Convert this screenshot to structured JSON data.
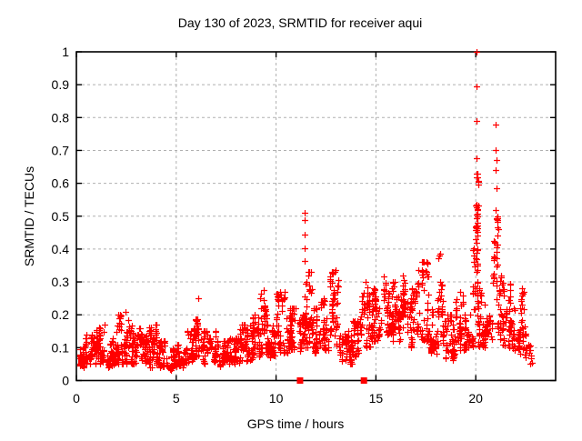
{
  "chart_data": {
    "type": "scatter",
    "title": "Day 130 of 2023, SRMTID for receiver aqui",
    "xlabel": "GPS time / hours",
    "ylabel": "SRMTID / TECUs",
    "xlim": [
      0,
      24
    ],
    "ylim": [
      0,
      1
    ],
    "xticks": [
      0,
      5,
      10,
      15,
      20
    ],
    "yticks": [
      0,
      0.1,
      0.2,
      0.3,
      0.4,
      0.5,
      0.6,
      0.7,
      0.8,
      0.9,
      1
    ],
    "grid": true,
    "legend": "none",
    "marker_color": "#ff0000",
    "grid_color": "#b0b0b0",
    "seed": 20230130,
    "series": [
      {
        "name": "srmtid",
        "marker": "plus",
        "band_envelope": [
          [
            0.03,
            0.5,
            0.04,
            0.13,
            55
          ],
          [
            0.5,
            1.0,
            0.05,
            0.14,
            55
          ],
          [
            1.0,
            1.5,
            0.05,
            0.17,
            55
          ],
          [
            1.5,
            2.0,
            0.04,
            0.13,
            55
          ],
          [
            2.0,
            2.5,
            0.05,
            0.2,
            55
          ],
          [
            2.5,
            3.0,
            0.05,
            0.19,
            55
          ],
          [
            3.0,
            3.5,
            0.05,
            0.16,
            55
          ],
          [
            3.5,
            4.0,
            0.04,
            0.17,
            55
          ],
          [
            4.0,
            4.5,
            0.04,
            0.12,
            50
          ],
          [
            4.5,
            5.0,
            0.03,
            0.1,
            50
          ],
          [
            5.0,
            5.5,
            0.04,
            0.11,
            50
          ],
          [
            5.5,
            5.9,
            0.05,
            0.15,
            40
          ],
          [
            5.9,
            6.3,
            0.07,
            0.25,
            45
          ],
          [
            6.3,
            7.0,
            0.05,
            0.15,
            70
          ],
          [
            7.0,
            7.6,
            0.04,
            0.12,
            60
          ],
          [
            7.6,
            8.2,
            0.05,
            0.13,
            60
          ],
          [
            8.2,
            8.8,
            0.06,
            0.17,
            60
          ],
          [
            8.8,
            9.2,
            0.07,
            0.2,
            42
          ],
          [
            9.2,
            9.6,
            0.08,
            0.27,
            42
          ],
          [
            9.6,
            10.0,
            0.07,
            0.18,
            42
          ],
          [
            10.0,
            10.6,
            0.08,
            0.27,
            62
          ],
          [
            10.6,
            11.1,
            0.09,
            0.22,
            52
          ],
          [
            11.1,
            11.35,
            0.08,
            0.2,
            26
          ],
          [
            11.35,
            11.55,
            0.1,
            0.34,
            28
          ],
          [
            11.55,
            11.85,
            0.1,
            0.33,
            34
          ],
          [
            11.85,
            12.25,
            0.08,
            0.22,
            42
          ],
          [
            12.25,
            12.65,
            0.09,
            0.25,
            42
          ],
          [
            12.65,
            13.15,
            0.1,
            0.33,
            52
          ],
          [
            13.15,
            13.85,
            0.05,
            0.16,
            72
          ],
          [
            13.85,
            14.2,
            0.07,
            0.18,
            36
          ],
          [
            14.2,
            14.85,
            0.1,
            0.3,
            66
          ],
          [
            14.85,
            15.25,
            0.12,
            0.28,
            42
          ],
          [
            15.25,
            15.85,
            0.14,
            0.33,
            62
          ],
          [
            15.85,
            16.25,
            0.12,
            0.3,
            42
          ],
          [
            16.25,
            16.65,
            0.14,
            0.32,
            42
          ],
          [
            16.65,
            17.05,
            0.1,
            0.28,
            42
          ],
          [
            17.05,
            17.65,
            0.12,
            0.36,
            60
          ],
          [
            17.65,
            18.05,
            0.08,
            0.22,
            42
          ],
          [
            18.05,
            18.45,
            0.1,
            0.38,
            42
          ],
          [
            18.45,
            19.0,
            0.06,
            0.2,
            56
          ],
          [
            19.0,
            19.4,
            0.08,
            0.27,
            42
          ],
          [
            19.4,
            19.85,
            0.09,
            0.2,
            46
          ],
          [
            19.85,
            20.1,
            0.12,
            0.55,
            30
          ],
          [
            19.98,
            20.2,
            0.45,
            0.63,
            26,
            0.7
          ],
          [
            20.1,
            20.35,
            0.1,
            0.3,
            26
          ],
          [
            20.35,
            20.85,
            0.1,
            0.24,
            50
          ],
          [
            20.85,
            21.1,
            0.15,
            0.5,
            30,
            0.9
          ],
          [
            21.1,
            21.35,
            0.12,
            0.35,
            28
          ],
          [
            21.35,
            21.8,
            0.1,
            0.3,
            48
          ],
          [
            21.8,
            22.2,
            0.09,
            0.22,
            40
          ],
          [
            22.2,
            22.45,
            0.08,
            0.28,
            24
          ],
          [
            22.45,
            22.8,
            0.05,
            0.17,
            22
          ]
        ],
        "outliers": [
          [
            2.45,
            0.21
          ],
          [
            6.1,
            0.25
          ],
          [
            9.4,
            0.275
          ],
          [
            11.44,
            0.365
          ],
          [
            11.44,
            0.402
          ],
          [
            11.44,
            0.445
          ],
          [
            11.44,
            0.487
          ],
          [
            11.44,
            0.51
          ],
          [
            11.75,
            0.33
          ],
          [
            13.0,
            0.335
          ],
          [
            14.5,
            0.3
          ],
          [
            17.4,
            0.36
          ],
          [
            18.2,
            0.385
          ],
          [
            19.2,
            0.27
          ],
          [
            20.05,
            1.0
          ],
          [
            20.03,
            0.895
          ],
          [
            20.05,
            0.79
          ],
          [
            20.05,
            0.675
          ],
          [
            20.08,
            0.52
          ],
          [
            20.08,
            0.5
          ],
          [
            20.06,
            0.47
          ],
          [
            20.08,
            0.44
          ],
          [
            20.06,
            0.42
          ],
          [
            20.08,
            0.4
          ],
          [
            20.06,
            0.37
          ],
          [
            20.08,
            0.35
          ],
          [
            20.06,
            0.33
          ],
          [
            20.08,
            0.3
          ],
          [
            20.06,
            0.28
          ],
          [
            21.0,
            0.78
          ],
          [
            21.0,
            0.7
          ],
          [
            21.02,
            0.67
          ],
          [
            21.0,
            0.64
          ],
          [
            21.02,
            0.585
          ],
          [
            21.0,
            0.52
          ],
          [
            21.02,
            0.49
          ],
          [
            21.1,
            0.44
          ],
          [
            21.12,
            0.46
          ],
          [
            22.3,
            0.28
          ]
        ]
      },
      {
        "name": "gap-flags",
        "marker": "filled-square",
        "points": [
          [
            11.2,
            0
          ],
          [
            14.4,
            0
          ]
        ]
      }
    ]
  }
}
